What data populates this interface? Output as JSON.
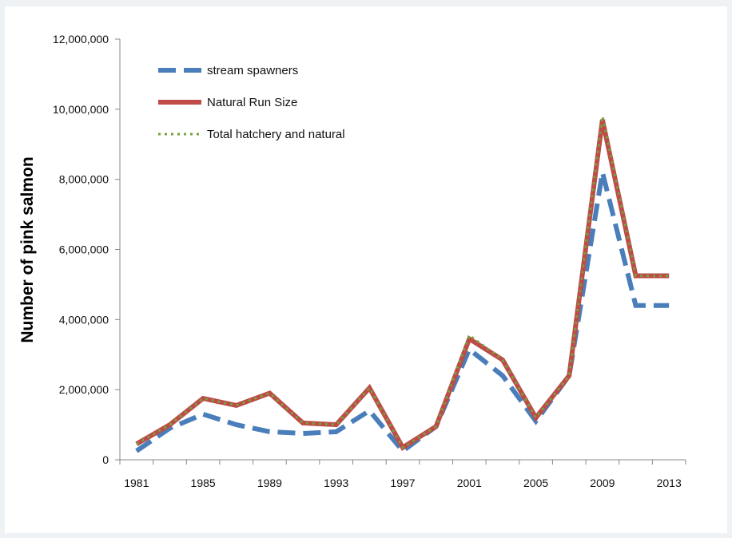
{
  "chart_data": {
    "type": "line",
    "title": "",
    "xlabel": "",
    "ylabel": "Number of pink salmon",
    "x": [
      1981,
      1983,
      1985,
      1987,
      1989,
      1991,
      1993,
      1995,
      1997,
      1999,
      2001,
      2003,
      2005,
      2007,
      2009,
      2011,
      2013
    ],
    "x_tick_labels": [
      "1981",
      "1985",
      "1989",
      "1993",
      "1997",
      "2001",
      "2005",
      "2009",
      "2013"
    ],
    "y_tick_labels": [
      "0",
      "2,000,000",
      "4,000,000",
      "6,000,000",
      "8,000,000",
      "10,000,000",
      "12,000,000"
    ],
    "xlim": [
      1980,
      2014
    ],
    "ylim": [
      0,
      12000000
    ],
    "grid": false,
    "legend_position": "top-left",
    "series": [
      {
        "name": "stream spawners",
        "color": "#4a7ebb",
        "style": "dashed",
        "values": [
          250000,
          900000,
          1300000,
          1000000,
          800000,
          750000,
          800000,
          1400000,
          250000,
          950000,
          3150000,
          2400000,
          1100000,
          2400000,
          8200000,
          4400000,
          4400000
        ]
      },
      {
        "name": "Natural Run Size",
        "color": "#be4b48",
        "style": "solid",
        "values": [
          450000,
          1000000,
          1750000,
          1550000,
          1900000,
          1050000,
          1000000,
          2050000,
          350000,
          950000,
          3450000,
          2850000,
          1200000,
          2400000,
          9700000,
          5250000,
          5250000
        ]
      },
      {
        "name": "Total hatchery and natural",
        "color": "#76a23c",
        "style": "dotted",
        "values": [
          450000,
          1000000,
          1750000,
          1550000,
          1900000,
          1050000,
          1000000,
          2050000,
          350000,
          950000,
          3550000,
          2850000,
          1200000,
          2400000,
          9800000,
          5250000,
          5250000
        ]
      }
    ]
  }
}
